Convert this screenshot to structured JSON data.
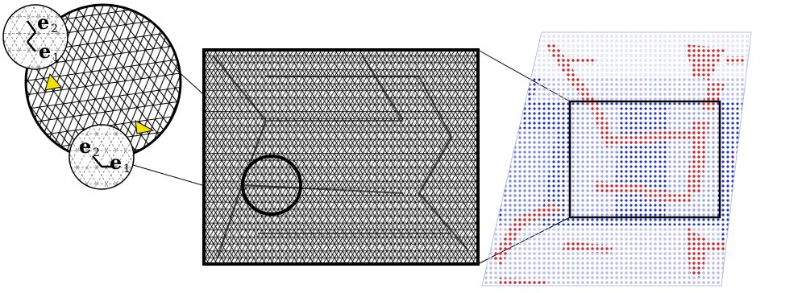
{
  "figure": {
    "inset_top": {
      "vector_1": "e",
      "vector_1_sub": "1",
      "vector_2": "e",
      "vector_2_sub": "2"
    },
    "inset_bottom": {
      "vector_1": "e",
      "vector_1_sub": "1",
      "vector_2": "e",
      "vector_2_sub": "2"
    },
    "colors": {
      "mesh_line": "#000000",
      "highlight_triangle": "#f2e200",
      "field_base": "#2a3fcf",
      "field_light": "#c9cfee",
      "field_red": "#d8262a",
      "frame": "#000000"
    }
  }
}
